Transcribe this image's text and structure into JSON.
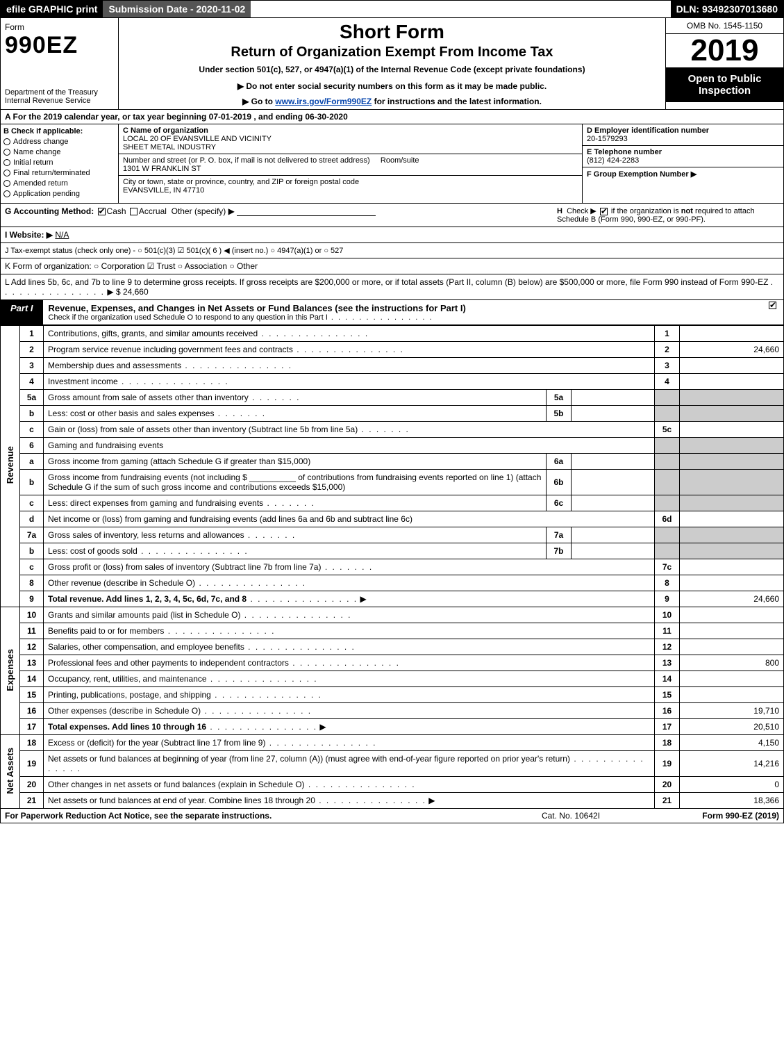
{
  "topbar": {
    "efile": "efile GRAPHIC print",
    "subdate": "Submission Date - 2020-11-02",
    "dln": "DLN: 93492307013680"
  },
  "header": {
    "form_word": "Form",
    "form_num": "990EZ",
    "dept": "Department of the Treasury",
    "irs": "Internal Revenue Service",
    "short_form": "Short Form",
    "return_title": "Return of Organization Exempt From Income Tax",
    "under": "Under section 501(c), 527, or 4947(a)(1) of the Internal Revenue Code (except private foundations)",
    "no_ssn": "▶ Do not enter social security numbers on this form as it may be made public.",
    "goto_pre": "▶ Go to ",
    "goto_link": "www.irs.gov/Form990EZ",
    "goto_post": " for instructions and the latest information.",
    "omb": "OMB No. 1545-1150",
    "year": "2019",
    "open": "Open to Public Inspection"
  },
  "line_a": "A For the 2019 calendar year, or tax year beginning 07-01-2019 , and ending 06-30-2020",
  "box_b": {
    "title": "B Check if applicable:",
    "items": [
      "Address change",
      "Name change",
      "Initial return",
      "Final return/terminated",
      "Amended return",
      "Application pending"
    ]
  },
  "box_c": {
    "name_lab": "C Name of organization",
    "name1": "LOCAL 20 OF EVANSVILLE AND VICINITY",
    "name2": "SHEET METAL INDUSTRY",
    "street_lab": "Number and street (or P. O. box, if mail is not delivered to street address)",
    "room_lab": "Room/suite",
    "street": "1301 W FRANKLIN ST",
    "city_lab": "City or town, state or province, country, and ZIP or foreign postal code",
    "city": "EVANSVILLE, IN  47710"
  },
  "box_d": {
    "ein_lab": "D Employer identification number",
    "ein": "20-1579293",
    "tel_lab": "E Telephone number",
    "tel": "(812) 424-2283",
    "grp_lab": "F Group Exemption Number   ▶"
  },
  "row_g": {
    "g_lab": "G Accounting Method:",
    "cash": "Cash",
    "accrual": "Accrual",
    "other": "Other (specify) ▶",
    "h_text": "H  Check ▶        if the organization is not required to attach Schedule B (Form 990, 990-EZ, or 990-PF)."
  },
  "row_i": {
    "lab": "I Website: ▶",
    "val": "N/A"
  },
  "row_j": "J Tax-exempt status (check only one) -   ○ 501(c)(3)   ☑ 501(c)( 6 ) ◀ (insert no.)   ○ 4947(a)(1) or   ○ 527",
  "row_k": "K Form of organization:   ○ Corporation   ☑ Trust   ○ Association   ○ Other",
  "row_l": {
    "text": "L Add lines 5b, 6c, and 7b to line 9 to determine gross receipts. If gross receipts are $200,000 or more, or if total assets (Part II, column (B) below) are $500,000 or more, file Form 990 instead of Form 990-EZ",
    "amount": "▶ $ 24,660"
  },
  "part1": {
    "label": "Part I",
    "title": "Revenue, Expenses, and Changes in Net Assets or Fund Balances (see the instructions for Part I)",
    "sub": "Check if the organization used Schedule O to respond to any question in this Part I"
  },
  "sections": {
    "rev": "Revenue",
    "exp": "Expenses",
    "na": "Net Assets"
  },
  "lines": {
    "1": {
      "n": "1",
      "d": "Contributions, gifts, grants, and similar amounts received",
      "amt": ""
    },
    "2": {
      "n": "2",
      "d": "Program service revenue including government fees and contracts",
      "amt": "24,660"
    },
    "3": {
      "n": "3",
      "d": "Membership dues and assessments",
      "amt": ""
    },
    "4": {
      "n": "4",
      "d": "Investment income",
      "amt": ""
    },
    "5a": {
      "n": "5a",
      "d": "Gross amount from sale of assets other than inventory",
      "sub": "5a",
      "sv": ""
    },
    "5b": {
      "n": "b",
      "d": "Less: cost or other basis and sales expenses",
      "sub": "5b",
      "sv": ""
    },
    "5c": {
      "n": "c",
      "d": "Gain or (loss) from sale of assets other than inventory (Subtract line 5b from line 5a)",
      "col": "5c",
      "amt": ""
    },
    "6": {
      "n": "6",
      "d": "Gaming and fundraising events"
    },
    "6a": {
      "n": "a",
      "d": "Gross income from gaming (attach Schedule G if greater than $15,000)",
      "sub": "6a",
      "sv": ""
    },
    "6b": {
      "n": "b",
      "d": "Gross income from fundraising events (not including $ __________ of contributions from fundraising events reported on line 1) (attach Schedule G if the sum of such gross income and contributions exceeds $15,000)",
      "sub": "6b",
      "sv": ""
    },
    "6c": {
      "n": "c",
      "d": "Less: direct expenses from gaming and fundraising events",
      "sub": "6c",
      "sv": ""
    },
    "6d": {
      "n": "d",
      "d": "Net income or (loss) from gaming and fundraising events (add lines 6a and 6b and subtract line 6c)",
      "col": "6d",
      "amt": ""
    },
    "7a": {
      "n": "7a",
      "d": "Gross sales of inventory, less returns and allowances",
      "sub": "7a",
      "sv": ""
    },
    "7b": {
      "n": "b",
      "d": "Less: cost of goods sold",
      "sub": "7b",
      "sv": ""
    },
    "7c": {
      "n": "c",
      "d": "Gross profit or (loss) from sales of inventory (Subtract line 7b from line 7a)",
      "col": "7c",
      "amt": ""
    },
    "8": {
      "n": "8",
      "d": "Other revenue (describe in Schedule O)",
      "amt": ""
    },
    "9": {
      "n": "9",
      "d": "Total revenue. Add lines 1, 2, 3, 4, 5c, 6d, 7c, and 8",
      "amt": "24,660",
      "bold": true,
      "arrow": true
    },
    "10": {
      "n": "10",
      "d": "Grants and similar amounts paid (list in Schedule O)",
      "amt": ""
    },
    "11": {
      "n": "11",
      "d": "Benefits paid to or for members",
      "amt": ""
    },
    "12": {
      "n": "12",
      "d": "Salaries, other compensation, and employee benefits",
      "amt": ""
    },
    "13": {
      "n": "13",
      "d": "Professional fees and other payments to independent contractors",
      "amt": "800"
    },
    "14": {
      "n": "14",
      "d": "Occupancy, rent, utilities, and maintenance",
      "amt": ""
    },
    "15": {
      "n": "15",
      "d": "Printing, publications, postage, and shipping",
      "amt": ""
    },
    "16": {
      "n": "16",
      "d": "Other expenses (describe in Schedule O)",
      "amt": "19,710"
    },
    "17": {
      "n": "17",
      "d": "Total expenses. Add lines 10 through 16",
      "amt": "20,510",
      "bold": true,
      "arrow": true
    },
    "18": {
      "n": "18",
      "d": "Excess or (deficit) for the year (Subtract line 17 from line 9)",
      "amt": "4,150"
    },
    "19": {
      "n": "19",
      "d": "Net assets or fund balances at beginning of year (from line 27, column (A)) (must agree with end-of-year figure reported on prior year's return)",
      "amt": "14,216"
    },
    "20": {
      "n": "20",
      "d": "Other changes in net assets or fund balances (explain in Schedule O)",
      "amt": "0"
    },
    "21": {
      "n": "21",
      "d": "Net assets or fund balances at end of year. Combine lines 18 through 20",
      "amt": "18,366",
      "arrow": true
    }
  },
  "footer": {
    "left": "For Paperwork Reduction Act Notice, see the separate instructions.",
    "mid": "Cat. No. 10642I",
    "right": "Form 990-EZ (2019)"
  },
  "colors": {
    "black": "#000000",
    "white": "#ffffff",
    "shade": "#cccccc",
    "darkbar": "#555555",
    "link": "#0645ad"
  }
}
